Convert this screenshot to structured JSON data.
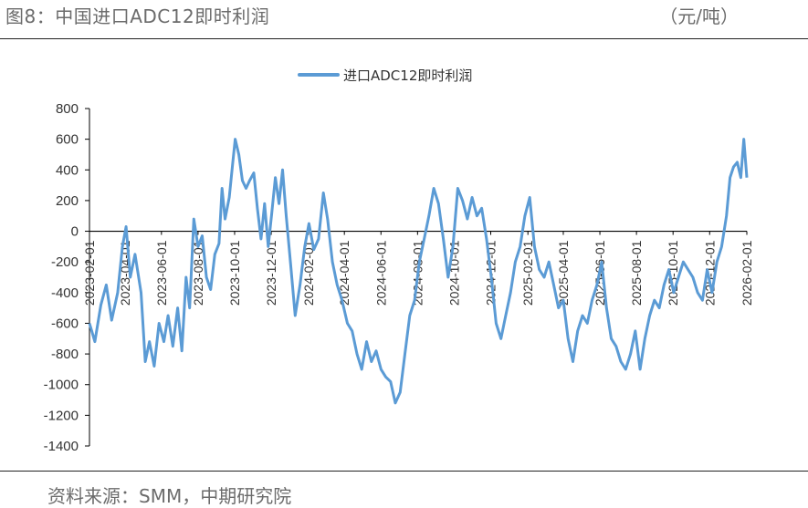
{
  "header": {
    "title": "图8：中国进口ADC12即时利润",
    "unit": "（元/吨）"
  },
  "footer": {
    "source": "资料来源：SMM，中期研究院"
  },
  "colors": {
    "series": "#5b9bd5",
    "axis": "#000000",
    "text": "#6b6b6b"
  },
  "chart_data": {
    "type": "line",
    "title": "",
    "xlabel": "",
    "ylabel": "",
    "ylim": [
      -1400,
      800
    ],
    "yticks": [
      800,
      600,
      400,
      200,
      0,
      -200,
      -400,
      -600,
      -800,
      -1000,
      -1200,
      -1400
    ],
    "xlim": [
      "2023-02-01",
      "2026-02-01"
    ],
    "xticks": [
      "2023-02-01",
      "2023-04-01",
      "2023-06-01",
      "2023-08-01",
      "2023-10-01",
      "2023-12-01",
      "2024-02-01",
      "2024-04-01",
      "2024-06-01",
      "2024-08-01",
      "2024-10-01",
      "2024-12-01",
      "2025-02-01",
      "2025-04-01",
      "2025-06-01",
      "2025-08-01",
      "2025-10-01",
      "2025-12-01",
      "2026-02-01"
    ],
    "grid": false,
    "legend": "top-center",
    "series": [
      {
        "name": "进口ADC12即时利润",
        "points": [
          [
            "2023-02-01",
            -600
          ],
          [
            "2023-02-10",
            -720
          ],
          [
            "2023-02-20",
            -480
          ],
          [
            "2023-03-01",
            -350
          ],
          [
            "2023-03-10",
            -580
          ],
          [
            "2023-03-20",
            -400
          ],
          [
            "2023-03-28",
            -100
          ],
          [
            "2023-04-03",
            30
          ],
          [
            "2023-04-10",
            -300
          ],
          [
            "2023-04-18",
            -150
          ],
          [
            "2023-04-28",
            -400
          ],
          [
            "2023-05-05",
            -850
          ],
          [
            "2023-05-12",
            -720
          ],
          [
            "2023-05-20",
            -880
          ],
          [
            "2023-05-28",
            -600
          ],
          [
            "2023-06-05",
            -720
          ],
          [
            "2023-06-12",
            -550
          ],
          [
            "2023-06-20",
            -750
          ],
          [
            "2023-06-28",
            -500
          ],
          [
            "2023-07-05",
            -780
          ],
          [
            "2023-07-12",
            -300
          ],
          [
            "2023-07-18",
            -500
          ],
          [
            "2023-07-25",
            80
          ],
          [
            "2023-08-01",
            -100
          ],
          [
            "2023-08-08",
            -30
          ],
          [
            "2023-08-15",
            -300
          ],
          [
            "2023-08-22",
            -380
          ],
          [
            "2023-08-29",
            -150
          ],
          [
            "2023-09-05",
            -80
          ],
          [
            "2023-09-10",
            280
          ],
          [
            "2023-09-15",
            80
          ],
          [
            "2023-09-22",
            220
          ],
          [
            "2023-09-28",
            450
          ],
          [
            "2023-10-02",
            600
          ],
          [
            "2023-10-08",
            500
          ],
          [
            "2023-10-14",
            330
          ],
          [
            "2023-10-20",
            280
          ],
          [
            "2023-10-26",
            330
          ],
          [
            "2023-11-02",
            380
          ],
          [
            "2023-11-08",
            150
          ],
          [
            "2023-11-14",
            -50
          ],
          [
            "2023-11-20",
            180
          ],
          [
            "2023-11-26",
            -100
          ],
          [
            "2023-12-02",
            120
          ],
          [
            "2023-12-08",
            350
          ],
          [
            "2023-12-14",
            180
          ],
          [
            "2023-12-20",
            400
          ],
          [
            "2023-12-26",
            100
          ],
          [
            "2024-01-02",
            -200
          ],
          [
            "2024-01-10",
            -550
          ],
          [
            "2024-01-18",
            -350
          ],
          [
            "2024-01-26",
            -100
          ],
          [
            "2024-02-02",
            50
          ],
          [
            "2024-02-10",
            -120
          ],
          [
            "2024-02-18",
            -50
          ],
          [
            "2024-02-26",
            250
          ],
          [
            "2024-03-04",
            80
          ],
          [
            "2024-03-12",
            -200
          ],
          [
            "2024-03-20",
            -350
          ],
          [
            "2024-03-28",
            -450
          ],
          [
            "2024-04-06",
            -600
          ],
          [
            "2024-04-14",
            -650
          ],
          [
            "2024-04-22",
            -800
          ],
          [
            "2024-04-30",
            -900
          ],
          [
            "2024-05-08",
            -720
          ],
          [
            "2024-05-16",
            -850
          ],
          [
            "2024-05-24",
            -780
          ],
          [
            "2024-06-01",
            -900
          ],
          [
            "2024-06-09",
            -950
          ],
          [
            "2024-06-17",
            -980
          ],
          [
            "2024-06-25",
            -1120
          ],
          [
            "2024-07-03",
            -1050
          ],
          [
            "2024-07-11",
            -800
          ],
          [
            "2024-07-19",
            -550
          ],
          [
            "2024-07-27",
            -450
          ],
          [
            "2024-08-04",
            -200
          ],
          [
            "2024-08-12",
            -50
          ],
          [
            "2024-08-20",
            100
          ],
          [
            "2024-08-28",
            280
          ],
          [
            "2024-09-05",
            180
          ],
          [
            "2024-09-13",
            -50
          ],
          [
            "2024-09-21",
            -300
          ],
          [
            "2024-09-29",
            -100
          ],
          [
            "2024-10-07",
            280
          ],
          [
            "2024-10-15",
            200
          ],
          [
            "2024-10-23",
            80
          ],
          [
            "2024-10-31",
            220
          ],
          [
            "2024-11-08",
            100
          ],
          [
            "2024-11-16",
            150
          ],
          [
            "2024-11-24",
            -50
          ],
          [
            "2024-12-02",
            -300
          ],
          [
            "2024-12-10",
            -600
          ],
          [
            "2024-12-18",
            -700
          ],
          [
            "2024-12-26",
            -550
          ],
          [
            "2025-01-03",
            -400
          ],
          [
            "2025-01-11",
            -200
          ],
          [
            "2025-01-19",
            -100
          ],
          [
            "2025-01-27",
            100
          ],
          [
            "2025-02-04",
            220
          ],
          [
            "2025-02-12",
            -100
          ],
          [
            "2025-02-20",
            -250
          ],
          [
            "2025-02-28",
            -300
          ],
          [
            "2025-03-08",
            -200
          ],
          [
            "2025-03-16",
            -350
          ],
          [
            "2025-03-24",
            -500
          ],
          [
            "2025-04-01",
            -450
          ],
          [
            "2025-04-09",
            -700
          ],
          [
            "2025-04-17",
            -850
          ],
          [
            "2025-04-25",
            -650
          ],
          [
            "2025-05-03",
            -550
          ],
          [
            "2025-05-11",
            -600
          ],
          [
            "2025-05-19",
            -450
          ],
          [
            "2025-05-27",
            -350
          ],
          [
            "2025-06-04",
            -200
          ],
          [
            "2025-06-12",
            -500
          ],
          [
            "2025-06-20",
            -700
          ],
          [
            "2025-06-28",
            -750
          ],
          [
            "2025-07-06",
            -850
          ],
          [
            "2025-07-14",
            -900
          ],
          [
            "2025-07-22",
            -800
          ],
          [
            "2025-07-30",
            -650
          ],
          [
            "2025-08-07",
            -900
          ],
          [
            "2025-08-15",
            -700
          ],
          [
            "2025-08-23",
            -550
          ],
          [
            "2025-08-31",
            -450
          ],
          [
            "2025-09-08",
            -500
          ],
          [
            "2025-09-16",
            -350
          ],
          [
            "2025-09-24",
            -250
          ],
          [
            "2025-10-02",
            -400
          ],
          [
            "2025-10-10",
            -300
          ],
          [
            "2025-10-18",
            -200
          ],
          [
            "2025-10-26",
            -250
          ],
          [
            "2025-11-03",
            -300
          ],
          [
            "2025-11-11",
            -400
          ],
          [
            "2025-11-19",
            -450
          ],
          [
            "2025-11-27",
            -250
          ],
          [
            "2025-12-05",
            -400
          ],
          [
            "2025-12-13",
            -200
          ],
          [
            "2025-12-21",
            -100
          ],
          [
            "2025-12-29",
            100
          ],
          [
            "2026-01-04",
            350
          ],
          [
            "2026-01-10",
            420
          ],
          [
            "2026-01-16",
            450
          ],
          [
            "2026-01-22",
            350
          ],
          [
            "2026-01-27",
            600
          ],
          [
            "2026-02-01",
            350
          ]
        ]
      }
    ]
  }
}
